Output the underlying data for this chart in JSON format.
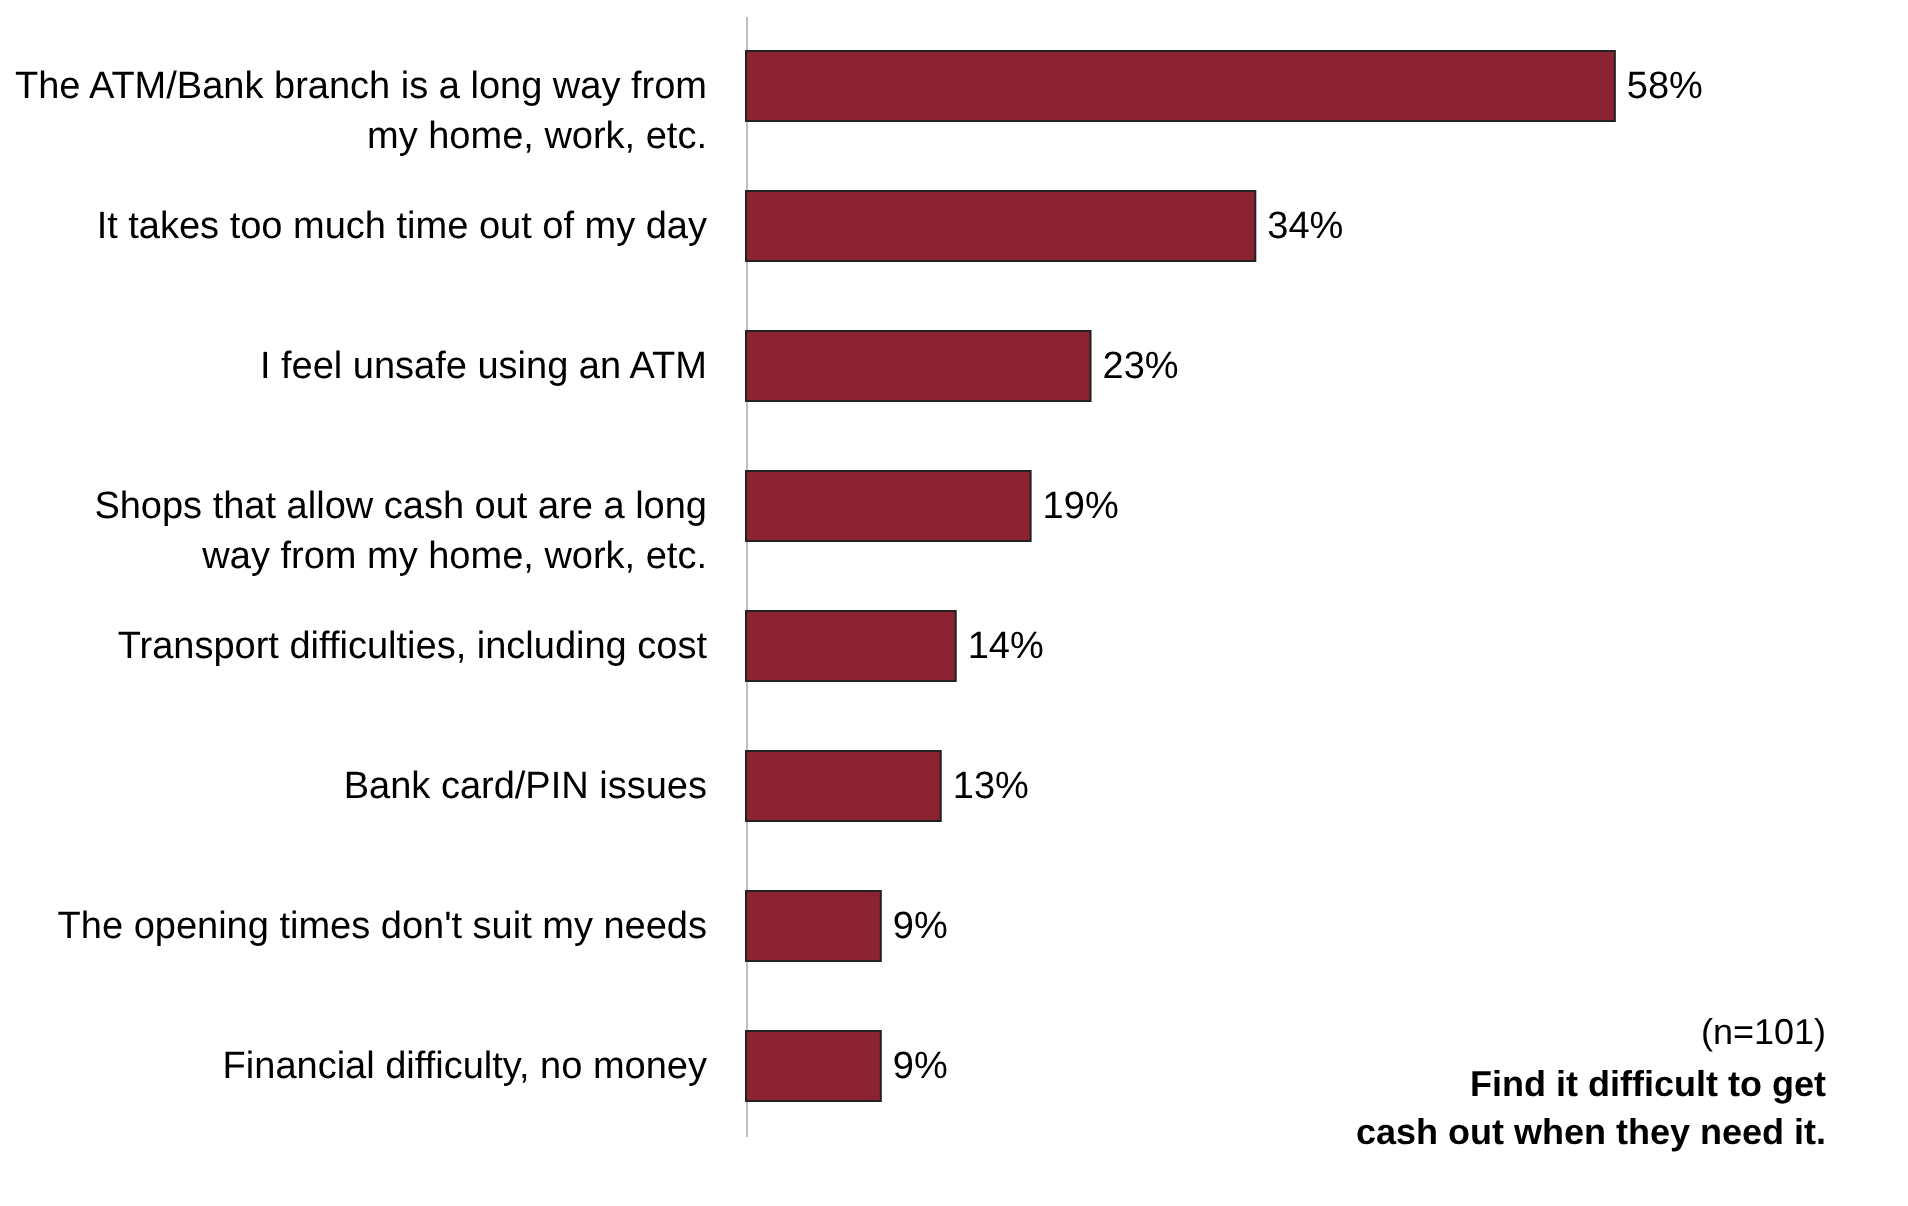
{
  "chart_data": {
    "type": "bar",
    "orientation": "horizontal",
    "color": "#8b2332",
    "categories": [
      "The ATM/Bank branch is a long way from my home, work, etc.",
      "It takes too much time out of my day",
      "I feel unsafe using an ATM",
      "Shops that allow cash out are a long way from my home, work, etc.",
      "Transport difficulties, including cost",
      "Bank card/PIN issues",
      "The opening times don't suit my needs",
      "Financial difficulty, no money"
    ],
    "values": [
      58,
      34,
      23,
      19,
      14,
      13,
      9,
      9
    ],
    "value_labels": [
      "58%",
      "34%",
      "23%",
      "19%",
      "14%",
      "13%",
      "9%",
      "9%"
    ],
    "annotations": [
      "(n=101)",
      "Find it difficult to get cash out when they need it."
    ]
  }
}
